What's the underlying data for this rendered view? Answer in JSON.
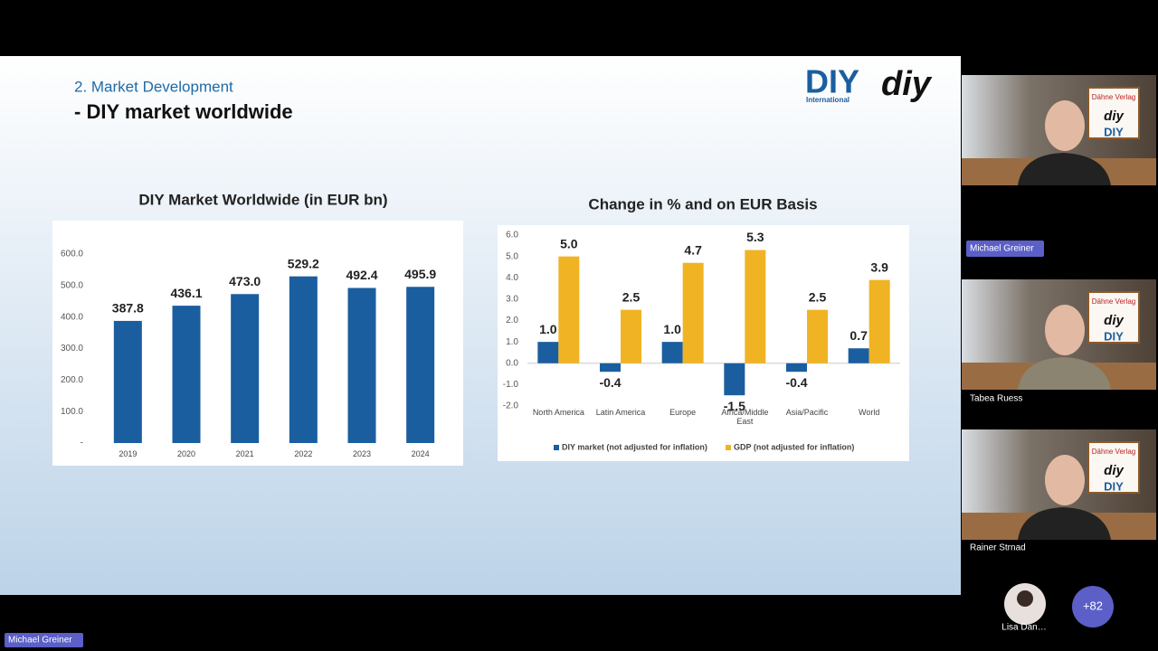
{
  "meeting": {
    "slide": {
      "section": "2. Market Development",
      "heading": "- DIY market worldwide",
      "logo": {
        "brand": "DIY",
        "subtitle": "International",
        "brand_alt": "diy"
      }
    },
    "poster": {
      "publisher": "Dähne Verlag",
      "mark_1": "diy",
      "mark_2": "DIY"
    },
    "participants": [
      {
        "name": "Michael Greiner"
      },
      {
        "name": "Tabea Ruess"
      },
      {
        "name": "Rainer Strnad"
      }
    ],
    "overflow": {
      "name": "Lisa Dan…",
      "more": "+82"
    },
    "presenter": "Michael Greiner"
  },
  "chart_data": [
    {
      "type": "bar",
      "title": "DIY Market Worldwide (in EUR bn)",
      "categories": [
        "2019",
        "2020",
        "2021",
        "2022",
        "2023",
        "2024"
      ],
      "values": [
        387.8,
        436.1,
        473.0,
        529.2,
        492.4,
        495.9
      ],
      "value_labels": [
        "387.8",
        "436.1",
        "473.0",
        "529.2",
        "492.4",
        "495.9"
      ],
      "color": "#1b5e9f",
      "ylim": [
        0,
        600
      ],
      "yticks": [
        {
          "value": 0,
          "label": "-"
        },
        {
          "value": 100,
          "label": "100.0"
        },
        {
          "value": 200,
          "label": "200.0"
        },
        {
          "value": 300,
          "label": "300.0"
        },
        {
          "value": 400,
          "label": "400.0"
        },
        {
          "value": 500,
          "label": "500.0"
        },
        {
          "value": 600,
          "label": "600.0"
        }
      ],
      "grid": false
    },
    {
      "type": "bar",
      "title": "Change in % and on EUR Basis",
      "categories": [
        "North America",
        "Latin America",
        "Europe",
        "Africa/Middle East",
        "Asia/Pacific",
        "World"
      ],
      "series": [
        {
          "name": "DIY market (not adjusted for inflation)",
          "color": "#1b5e9f",
          "values": [
            1.0,
            -0.4,
            1.0,
            -1.5,
            -0.4,
            0.7
          ],
          "value_labels": [
            "1.0",
            "-0.4",
            "1.0",
            "-1.5",
            "-0.4",
            "0.7"
          ]
        },
        {
          "name": "GDP (not adjusted for inflation)",
          "color": "#f0b323",
          "values": [
            5.0,
            2.5,
            4.7,
            5.3,
            2.5,
            3.9
          ],
          "value_labels": [
            "5.0",
            "2.5",
            "4.7",
            "5.3",
            "2.5",
            "3.9"
          ]
        }
      ],
      "ylim": [
        -2,
        6
      ],
      "yticks": [
        {
          "value": -2,
          "label": "-2.0"
        },
        {
          "value": -1,
          "label": "-1.0"
        },
        {
          "value": 0,
          "label": "0.0"
        },
        {
          "value": 1,
          "label": "1.0"
        },
        {
          "value": 2,
          "label": "2.0"
        },
        {
          "value": 3,
          "label": "3.0"
        },
        {
          "value": 4,
          "label": "4.0"
        },
        {
          "value": 5,
          "label": "5.0"
        },
        {
          "value": 6,
          "label": "6.0"
        }
      ],
      "grid": false,
      "legend": "bottom"
    }
  ]
}
